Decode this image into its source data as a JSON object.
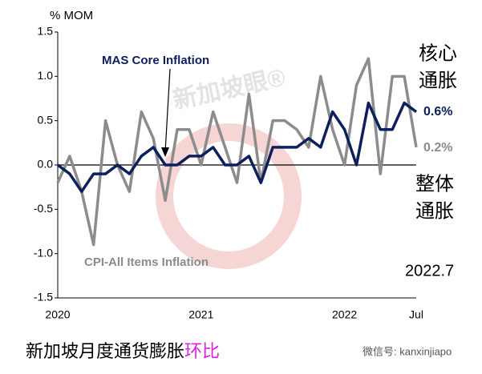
{
  "chart_data": {
    "type": "line",
    "y_label": "% MOM",
    "categories": [
      "2020",
      null,
      null,
      null,
      null,
      null,
      null,
      null,
      null,
      null,
      null,
      null,
      "2021",
      null,
      null,
      null,
      null,
      null,
      null,
      null,
      null,
      null,
      null,
      null,
      "2022",
      null,
      null,
      null,
      null,
      null,
      "Jul"
    ],
    "series": [
      {
        "name": "MAS Core Inflation",
        "color": "#0d1f5c",
        "values": [
          0.0,
          -0.1,
          -0.3,
          -0.1,
          -0.1,
          0.0,
          -0.1,
          0.1,
          0.2,
          0.0,
          0.0,
          0.1,
          0.1,
          0.2,
          0.0,
          0.0,
          0.1,
          -0.2,
          0.2,
          0.2,
          0.2,
          0.3,
          0.2,
          0.6,
          0.4,
          0.0,
          0.7,
          0.4,
          0.4,
          0.7,
          0.6
        ]
      },
      {
        "name": "CPI-All Items Inflation",
        "color": "#8c8c8c",
        "values": [
          -0.2,
          0.1,
          -0.3,
          -0.9,
          0.5,
          0.0,
          -0.3,
          0.6,
          0.3,
          -0.4,
          0.4,
          0.4,
          0.0,
          0.6,
          0.2,
          -0.2,
          0.8,
          -0.2,
          0.5,
          0.5,
          0.4,
          0.2,
          1.0,
          0.4,
          0.0,
          0.9,
          1.2,
          -0.1,
          1.0,
          1.0,
          0.2
        ]
      }
    ],
    "ylim": [
      -1.5,
      1.5
    ],
    "yticks": [
      -1.5,
      {
        "value": -1.0,
        "label": "-1.0"
      },
      -0.5,
      {
        "value": 0.0,
        "label": "0.0"
      },
      0.5,
      {
        "value": 1.0,
        "label": "1.0"
      },
      1.5
    ],
    "annotations": {
      "core_side": [
        "核心",
        "通胀"
      ],
      "core_end": "0.6%",
      "cpi_end": "0.2%",
      "cpi_side": [
        "整体",
        "通胀"
      ],
      "period": "2022.7"
    },
    "caption": [
      "新加坡月度通货膨胀",
      "环比"
    ],
    "watermark": "新加坡眼®",
    "wechat": "微信号: kanxinjiapo"
  }
}
